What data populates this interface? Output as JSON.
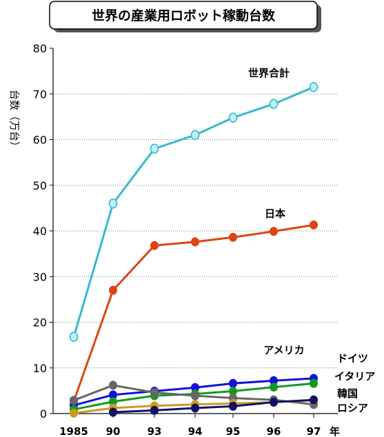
{
  "chart_data": {
    "type": "line",
    "title": "世界の産業用ロボット稼動台数",
    "ylabel": "台数（万台）",
    "xlabel": "年",
    "categories": [
      "1985",
      "90",
      "93",
      "94",
      "95",
      "96",
      "97"
    ],
    "yticks": [
      "0",
      "10",
      "20",
      "30",
      "40",
      "50",
      "60",
      "70",
      "80"
    ],
    "ylim": [
      0,
      80
    ],
    "grid": true,
    "series": [
      {
        "name": "世界合計",
        "color": "#33bbcc",
        "marker": "open-circle",
        "values": [
          16.8,
          46.0,
          58.0,
          61.0,
          64.8,
          67.8,
          71.5
        ]
      },
      {
        "name": "日本",
        "color": "#dd4411",
        "marker": "filled-circle",
        "values": [
          2.7,
          27.0,
          36.8,
          37.6,
          38.6,
          39.9,
          41.3
        ]
      },
      {
        "name": "アメリカ",
        "color": "#1111dd",
        "marker": "filled-circle",
        "values": [
          1.8,
          4.1,
          4.9,
          5.7,
          6.6,
          7.2,
          7.7
        ]
      },
      {
        "name": "ドイツ",
        "color": "#119922",
        "marker": "filled-circle",
        "values": [
          0.9,
          2.6,
          3.9,
          4.3,
          4.9,
          5.8,
          6.6
        ]
      },
      {
        "name": "イタリア",
        "color": "#666666",
        "marker": "filled-circle",
        "values": [
          2.9,
          6.2,
          4.6,
          3.9,
          3.4,
          3.0,
          2.0
        ]
      },
      {
        "name": "韓国",
        "color": "#cc9922",
        "marker": "filled-circle",
        "values": [
          0.1,
          1.2,
          1.7,
          2.0,
          2.2,
          2.5,
          2.9
        ]
      },
      {
        "name": "ロシア",
        "color": "#111166",
        "marker": "filled-circle",
        "values": [
          null,
          0.3,
          0.7,
          1.2,
          1.6,
          2.5,
          3.0
        ]
      }
    ],
    "annotations": {
      "world_total": "世界合計",
      "japan": "日本",
      "america": "アメリカ",
      "germany": "ドイツ",
      "italy": "イタリア",
      "korea": "韓国",
      "russia": "ロシア"
    }
  }
}
